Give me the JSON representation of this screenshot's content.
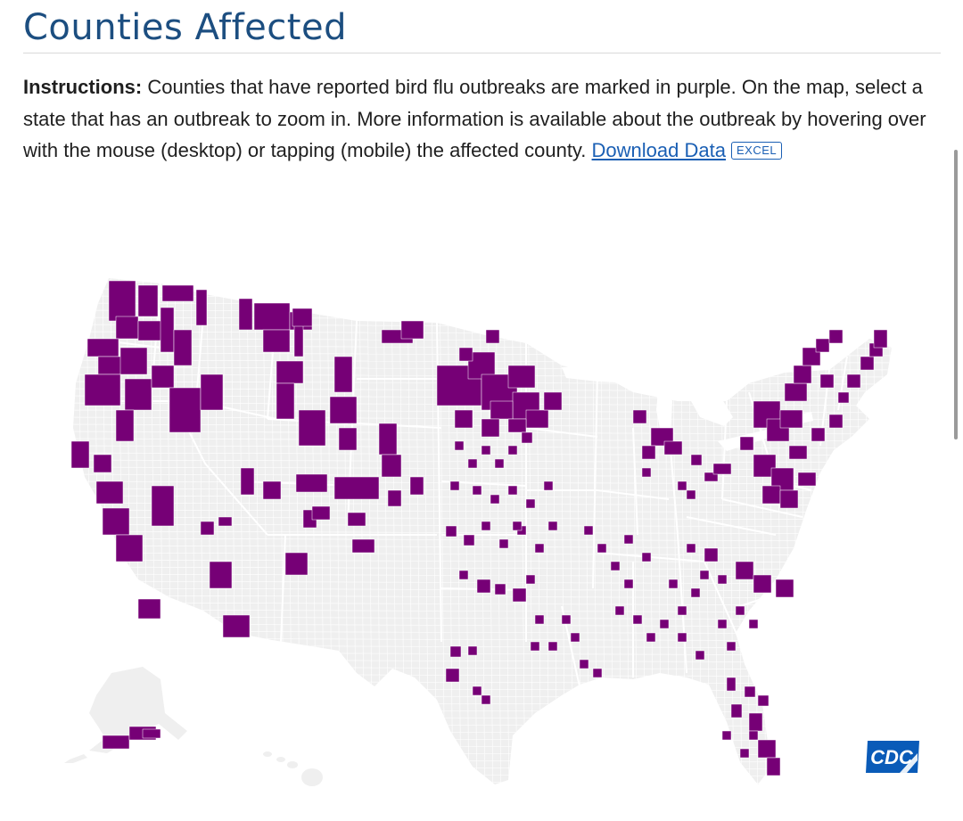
{
  "header": {
    "title": "Counties Affected"
  },
  "instructions": {
    "label": "Instructions:",
    "text": "Counties that have reported bird flu outbreaks are marked in purple. On the map, select a state that has an outbreak to zoom in. More information is available about the outbreak by hovering over with the mouse (desktop) or tapping (mobile) the affected county.",
    "download_link": "Download Data",
    "badge": "EXCEL"
  },
  "map": {
    "colors": {
      "land": "#efefef",
      "border": "#ffffff",
      "affected": "#760076"
    }
  },
  "logo": {
    "text": "CDC",
    "color": "#0a5bb8"
  }
}
